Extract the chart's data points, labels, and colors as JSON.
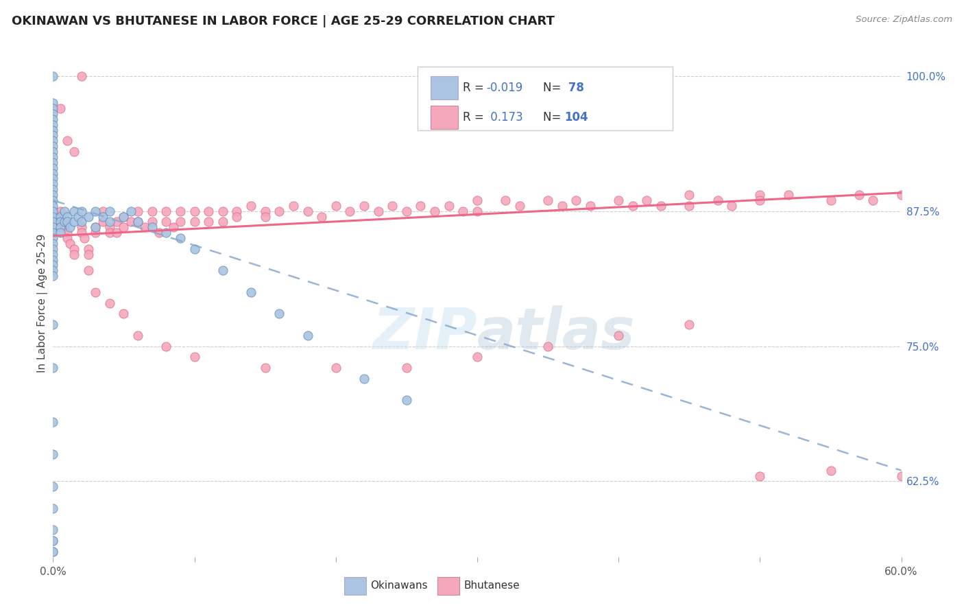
{
  "title": "OKINAWAN VS BHUTANESE IN LABOR FORCE | AGE 25-29 CORRELATION CHART",
  "source": "Source: ZipAtlas.com",
  "ylabel": "In Labor Force | Age 25-29",
  "legend_r_okinawan": "-0.019",
  "legend_n_okinawan": "78",
  "legend_r_bhutanese": "0.173",
  "legend_n_bhutanese": "104",
  "okinawan_color": "#aac4e2",
  "bhutanese_color": "#f5a8bc",
  "okinawan_edge_color": "#5588bb",
  "bhutanese_edge_color": "#dd6688",
  "okinawan_line_color": "#88aacc",
  "bhutanese_line_color": "#ee6688",
  "label_color": "#4472c4",
  "watermark": "ZIPatlas",
  "background_color": "#ffffff",
  "xlim": [
    0.0,
    0.6
  ],
  "ylim": [
    0.555,
    1.025
  ],
  "ok_line_x": [
    0.0,
    0.6
  ],
  "ok_line_y": [
    0.885,
    0.635
  ],
  "bh_line_x": [
    0.0,
    0.6
  ],
  "bh_line_y": [
    0.852,
    0.892
  ],
  "okinawan_x": [
    0.0,
    0.0,
    0.0,
    0.0,
    0.0,
    0.0,
    0.0,
    0.0,
    0.0,
    0.0,
    0.0,
    0.0,
    0.0,
    0.0,
    0.0,
    0.0,
    0.0,
    0.0,
    0.0,
    0.0,
    0.0,
    0.0,
    0.0,
    0.0,
    0.0,
    0.0,
    0.0,
    0.0,
    0.0,
    0.0,
    0.0,
    0.0,
    0.0,
    0.0,
    0.005,
    0.005,
    0.005,
    0.005,
    0.008,
    0.008,
    0.01,
    0.01,
    0.012,
    0.015,
    0.015,
    0.018,
    0.02,
    0.02,
    0.025,
    0.03,
    0.03,
    0.035,
    0.04,
    0.04,
    0.05,
    0.055,
    0.06,
    0.07,
    0.08,
    0.09,
    0.1,
    0.12,
    0.14,
    0.16,
    0.18,
    0.22,
    0.25,
    0.0,
    0.0,
    0.0,
    0.0,
    0.0,
    0.0,
    0.0,
    0.0,
    0.0,
    0.0,
    0.0
  ],
  "okinawan_y": [
    1.0,
    0.975,
    0.97,
    0.965,
    0.96,
    0.955,
    0.95,
    0.945,
    0.94,
    0.935,
    0.93,
    0.925,
    0.92,
    0.915,
    0.91,
    0.905,
    0.9,
    0.895,
    0.89,
    0.885,
    0.88,
    0.875,
    0.87,
    0.865,
    0.86,
    0.855,
    0.85,
    0.845,
    0.84,
    0.835,
    0.83,
    0.825,
    0.82,
    0.815,
    0.87,
    0.865,
    0.86,
    0.855,
    0.875,
    0.865,
    0.87,
    0.865,
    0.86,
    0.875,
    0.865,
    0.87,
    0.875,
    0.865,
    0.87,
    0.875,
    0.86,
    0.87,
    0.875,
    0.865,
    0.87,
    0.875,
    0.865,
    0.86,
    0.855,
    0.85,
    0.84,
    0.82,
    0.8,
    0.78,
    0.76,
    0.72,
    0.7,
    0.77,
    0.73,
    0.68,
    0.65,
    0.62,
    0.6,
    0.58,
    0.57,
    0.57,
    0.56,
    0.56
  ],
  "bhutanese_x": [
    0.005,
    0.005,
    0.008,
    0.01,
    0.01,
    0.012,
    0.015,
    0.015,
    0.02,
    0.02,
    0.022,
    0.025,
    0.025,
    0.03,
    0.03,
    0.035,
    0.035,
    0.04,
    0.04,
    0.045,
    0.045,
    0.05,
    0.05,
    0.055,
    0.06,
    0.06,
    0.065,
    0.07,
    0.07,
    0.075,
    0.08,
    0.08,
    0.085,
    0.09,
    0.09,
    0.1,
    0.1,
    0.11,
    0.11,
    0.12,
    0.12,
    0.13,
    0.13,
    0.14,
    0.15,
    0.15,
    0.16,
    0.17,
    0.18,
    0.19,
    0.2,
    0.21,
    0.22,
    0.23,
    0.24,
    0.25,
    0.26,
    0.27,
    0.28,
    0.29,
    0.3,
    0.3,
    0.32,
    0.33,
    0.35,
    0.36,
    0.37,
    0.38,
    0.4,
    0.41,
    0.42,
    0.43,
    0.45,
    0.45,
    0.47,
    0.48,
    0.5,
    0.5,
    0.52,
    0.55,
    0.57,
    0.58,
    0.005,
    0.01,
    0.015,
    0.02,
    0.025,
    0.03,
    0.04,
    0.05,
    0.06,
    0.08,
    0.1,
    0.15,
    0.2,
    0.25,
    0.3,
    0.35,
    0.4,
    0.45,
    0.5,
    0.55,
    0.6,
    0.6
  ],
  "bhutanese_y": [
    0.875,
    0.865,
    0.86,
    0.855,
    0.85,
    0.845,
    0.84,
    0.835,
    0.86,
    0.855,
    0.85,
    0.84,
    0.835,
    0.86,
    0.855,
    0.875,
    0.865,
    0.86,
    0.855,
    0.865,
    0.855,
    0.87,
    0.86,
    0.865,
    0.875,
    0.865,
    0.86,
    0.875,
    0.865,
    0.855,
    0.875,
    0.865,
    0.86,
    0.875,
    0.865,
    0.875,
    0.865,
    0.875,
    0.865,
    0.875,
    0.865,
    0.875,
    0.87,
    0.88,
    0.875,
    0.87,
    0.875,
    0.88,
    0.875,
    0.87,
    0.88,
    0.875,
    0.88,
    0.875,
    0.88,
    0.875,
    0.88,
    0.875,
    0.88,
    0.875,
    0.885,
    0.875,
    0.885,
    0.88,
    0.885,
    0.88,
    0.885,
    0.88,
    0.885,
    0.88,
    0.885,
    0.88,
    0.89,
    0.88,
    0.885,
    0.88,
    0.89,
    0.885,
    0.89,
    0.885,
    0.89,
    0.885,
    0.97,
    0.94,
    0.93,
    1.0,
    0.82,
    0.8,
    0.79,
    0.78,
    0.76,
    0.75,
    0.74,
    0.73,
    0.73,
    0.73,
    0.74,
    0.75,
    0.76,
    0.77,
    0.63,
    0.635,
    0.89,
    0.63
  ]
}
